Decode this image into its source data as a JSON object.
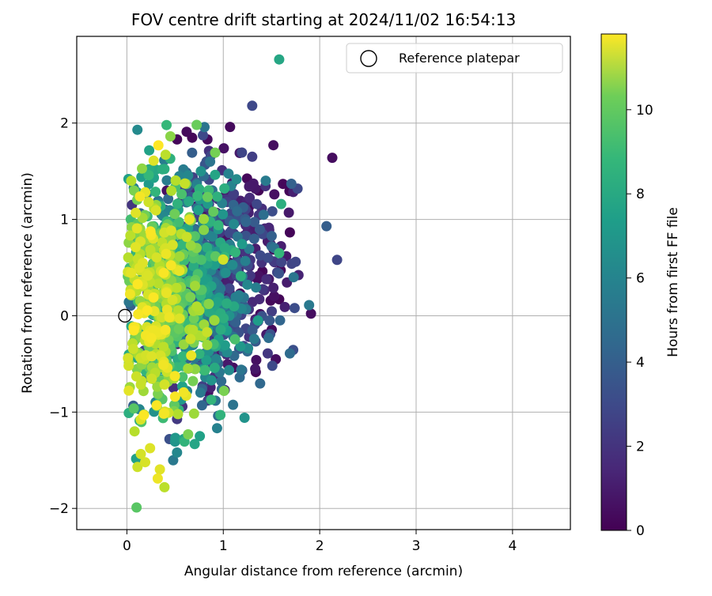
{
  "chart_data": {
    "type": "scatter",
    "title": "FOV centre drift starting at 2024/11/02 16:54:13",
    "xlabel": "Angular distance from reference (arcmin)",
    "ylabel": "Rotation from reference (arcmin)",
    "xlim": [
      -0.52,
      4.6
    ],
    "ylim": [
      -2.22,
      2.9
    ],
    "xticks": [
      0,
      1,
      2,
      3,
      4
    ],
    "yticks": [
      -2,
      -1,
      0,
      1,
      2
    ],
    "grid": true,
    "legend": {
      "position": "top-right",
      "entries": [
        "Reference platepar"
      ]
    },
    "reference_point": {
      "x": -0.02,
      "y": 0.0
    },
    "colorbar": {
      "label": "Hours from first FF file",
      "colormap": "viridis",
      "range": [
        0,
        11.8
      ],
      "ticks": [
        0,
        2,
        4,
        6,
        8,
        10
      ]
    },
    "notable_points": [
      {
        "x": 1.58,
        "y": 2.66,
        "hours": 7.0
      },
      {
        "x": 1.3,
        "y": 2.18,
        "hours": 2.6
      },
      {
        "x": 1.07,
        "y": 1.96,
        "hours": 0.3
      },
      {
        "x": 0.62,
        "y": 1.91,
        "hours": 0.3
      },
      {
        "x": 0.52,
        "y": 1.83,
        "hours": 0.2
      },
      {
        "x": 1.17,
        "y": 1.69,
        "hours": 0.8
      },
      {
        "x": 1.3,
        "y": 1.65,
        "hours": 2.2
      },
      {
        "x": 1.52,
        "y": 1.77,
        "hours": 0.4
      },
      {
        "x": 2.13,
        "y": 1.64,
        "hours": 0.4
      },
      {
        "x": 0.45,
        "y": 1.63,
        "hours": 7.5
      },
      {
        "x": 0.87,
        "y": 1.66,
        "hours": 2.5
      },
      {
        "x": 0.23,
        "y": 1.52,
        "hours": 7.3
      },
      {
        "x": 0.15,
        "y": 1.44,
        "hours": 6.6
      },
      {
        "x": 0.21,
        "y": 1.27,
        "hours": 5.2
      },
      {
        "x": 1.53,
        "y": 1.26,
        "hours": 0.5
      },
      {
        "x": 1.77,
        "y": 1.32,
        "hours": 2.6
      },
      {
        "x": 1.6,
        "y": 1.16,
        "hours": 7.4
      },
      {
        "x": 1.68,
        "y": 1.07,
        "hours": 0.8
      },
      {
        "x": 2.07,
        "y": 0.93,
        "hours": 3.5
      },
      {
        "x": 2.18,
        "y": 0.58,
        "hours": 2.5
      },
      {
        "x": 1.75,
        "y": 0.56,
        "hours": 2.5
      },
      {
        "x": 1.73,
        "y": 0.4,
        "hours": 4.6
      },
      {
        "x": 1.58,
        "y": 0.65,
        "hours": 7.8
      },
      {
        "x": 1.89,
        "y": 0.11,
        "hours": 4.8
      },
      {
        "x": 1.74,
        "y": 0.08,
        "hours": 2.8
      },
      {
        "x": 1.52,
        "y": 0.29,
        "hours": 1.0
      },
      {
        "x": 1.48,
        "y": -0.05,
        "hours": 3.2
      },
      {
        "x": 1.47,
        "y": -0.23,
        "hours": 4.2
      },
      {
        "x": 1.36,
        "y": -0.05,
        "hours": 6.5
      },
      {
        "x": 1.32,
        "y": -0.24,
        "hours": 4.8
      },
      {
        "x": 1.25,
        "y": -0.37,
        "hours": 4.1
      },
      {
        "x": 1.17,
        "y": -0.64,
        "hours": 4.1
      },
      {
        "x": 0.97,
        "y": -1.03,
        "hours": 7.6
      },
      {
        "x": 0.84,
        "y": -0.88,
        "hours": 2.3
      },
      {
        "x": 0.78,
        "y": -0.93,
        "hours": 3.9
      },
      {
        "x": 0.59,
        "y": -1.28,
        "hours": 6.8
      },
      {
        "x": 0.52,
        "y": -1.42,
        "hours": 5.5
      },
      {
        "x": 0.48,
        "y": -1.5,
        "hours": 4.8
      },
      {
        "x": 0.39,
        "y": -1.78,
        "hours": 10.6
      },
      {
        "x": 0.32,
        "y": -1.69,
        "hours": 11.5
      },
      {
        "x": 0.19,
        "y": -1.52,
        "hours": 11.1
      },
      {
        "x": 0.11,
        "y": -1.57,
        "hours": 10.9
      },
      {
        "x": 0.1,
        "y": -1.99,
        "hours": 8.7
      },
      {
        "x": 0.08,
        "y": -1.2,
        "hours": 10.5
      },
      {
        "x": 0.02,
        "y": -1.01,
        "hours": 7.4
      },
      {
        "x": 0.39,
        "y": -1.01,
        "hours": 11.5
      },
      {
        "x": 0.04,
        "y": 1.0,
        "hours": 8.2
      },
      {
        "x": 0.01,
        "y": 0.41,
        "hours": 8.9
      }
    ]
  }
}
